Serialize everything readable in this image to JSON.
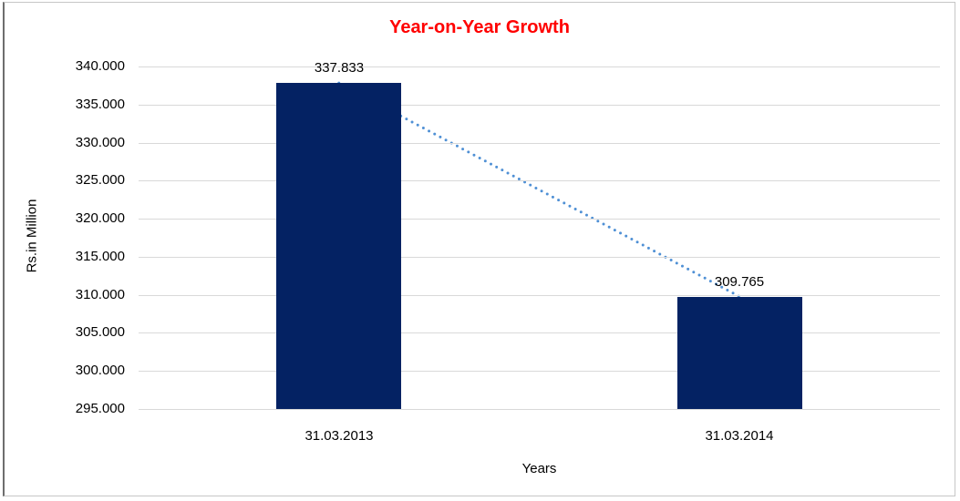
{
  "chart_data": {
    "type": "bar",
    "title": "Year-on-Year Growth",
    "xlabel": "Years",
    "ylabel": "Rs.in Million",
    "categories": [
      "31.03.2013",
      "31.03.2014"
    ],
    "values": [
      337.833,
      309.765
    ],
    "data_labels": [
      "337.833",
      "309.765"
    ],
    "ylim": [
      295,
      340
    ],
    "ytick_step": 5,
    "yticks": [
      340,
      335,
      330,
      325,
      320,
      315,
      310,
      305,
      300,
      295
    ],
    "ytick_labels": [
      "340.000",
      "335.000",
      "330.000",
      "325.000",
      "320.000",
      "315.000",
      "310.000",
      "305.000",
      "300.000",
      "295.000"
    ],
    "grid": "horizontal",
    "legend_position": "none",
    "trendline": {
      "type": "linear",
      "style": "dotted",
      "from_value": 337.833,
      "to_value": 309.765
    },
    "colors": {
      "bar": "#042263",
      "trendline": "#4f90d5",
      "title": "#ff0000",
      "gridline": "#d9d9d9",
      "text": "#000000",
      "border": "#c6c6c6"
    }
  }
}
